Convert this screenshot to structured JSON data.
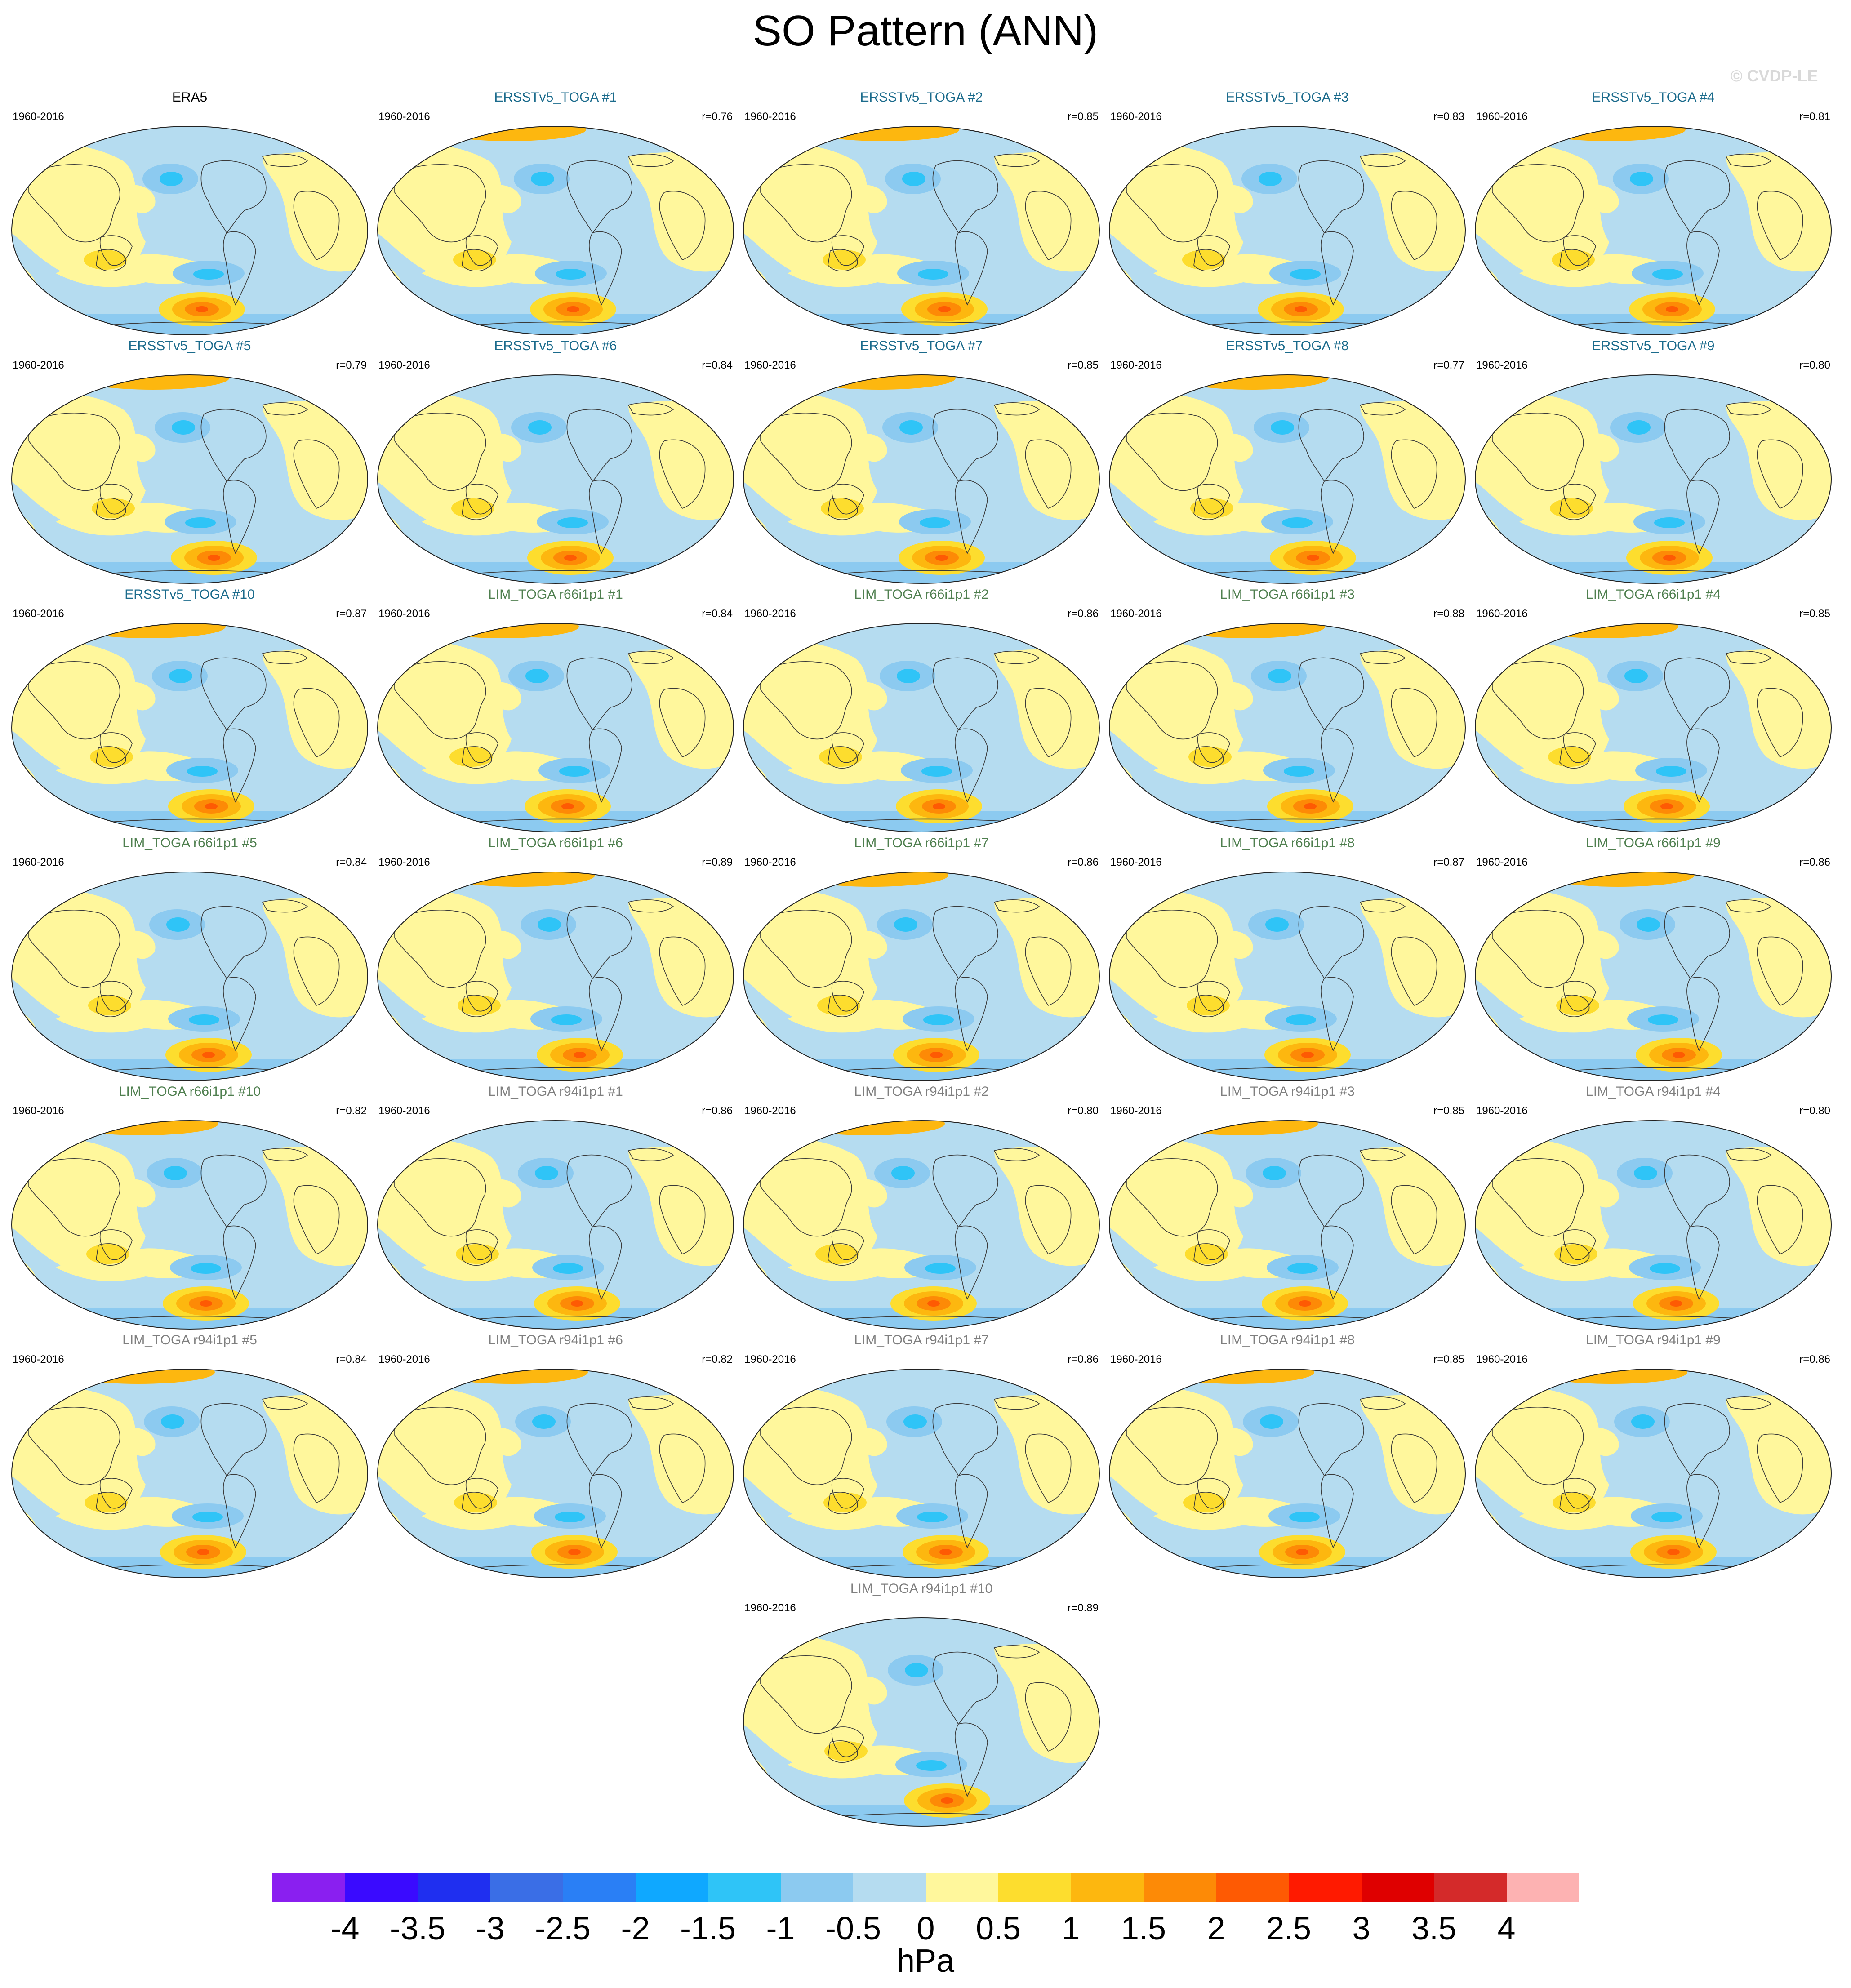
{
  "title": "SO Pattern (ANN)",
  "watermark": "© CVDP-LE",
  "colors": {
    "obs_title": "#000000",
    "ersst_title": "#1b6b8c",
    "lim66_title": "#4f7f4f",
    "lim94_title": "#7f7f7f",
    "ocean_neg": "#b5dcf0",
    "land_pos": "#fff79c",
    "contour": "#3a3a3a"
  },
  "panels": [
    {
      "title": "ERA5",
      "period": "1960-2016",
      "corr": "",
      "group": "obs"
    },
    {
      "title": "ERSSTv5_TOGA #1",
      "period": "1960-2016",
      "corr": "r=0.76",
      "group": "ersst"
    },
    {
      "title": "ERSSTv5_TOGA #2",
      "period": "1960-2016",
      "corr": "r=0.85",
      "group": "ersst"
    },
    {
      "title": "ERSSTv5_TOGA #3",
      "period": "1960-2016",
      "corr": "r=0.83",
      "group": "ersst"
    },
    {
      "title": "ERSSTv5_TOGA #4",
      "period": "1960-2016",
      "corr": "r=0.81",
      "group": "ersst"
    },
    {
      "title": "ERSSTv5_TOGA #5",
      "period": "1960-2016",
      "corr": "r=0.79",
      "group": "ersst"
    },
    {
      "title": "ERSSTv5_TOGA #6",
      "period": "1960-2016",
      "corr": "r=0.84",
      "group": "ersst"
    },
    {
      "title": "ERSSTv5_TOGA #7",
      "period": "1960-2016",
      "corr": "r=0.85",
      "group": "ersst"
    },
    {
      "title": "ERSSTv5_TOGA #8",
      "period": "1960-2016",
      "corr": "r=0.77",
      "group": "ersst"
    },
    {
      "title": "ERSSTv5_TOGA #9",
      "period": "1960-2016",
      "corr": "r=0.80",
      "group": "ersst"
    },
    {
      "title": "ERSSTv5_TOGA #10",
      "period": "1960-2016",
      "corr": "r=0.87",
      "group": "ersst"
    },
    {
      "title": "LIM_TOGA r66i1p1 #1",
      "period": "1960-2016",
      "corr": "r=0.84",
      "group": "lim66"
    },
    {
      "title": "LIM_TOGA r66i1p1 #2",
      "period": "1960-2016",
      "corr": "r=0.86",
      "group": "lim66"
    },
    {
      "title": "LIM_TOGA r66i1p1 #3",
      "period": "1960-2016",
      "corr": "r=0.88",
      "group": "lim66"
    },
    {
      "title": "LIM_TOGA r66i1p1 #4",
      "period": "1960-2016",
      "corr": "r=0.85",
      "group": "lim66"
    },
    {
      "title": "LIM_TOGA r66i1p1 #5",
      "period": "1960-2016",
      "corr": "r=0.84",
      "group": "lim66"
    },
    {
      "title": "LIM_TOGA r66i1p1 #6",
      "period": "1960-2016",
      "corr": "r=0.89",
      "group": "lim66"
    },
    {
      "title": "LIM_TOGA r66i1p1 #7",
      "period": "1960-2016",
      "corr": "r=0.86",
      "group": "lim66"
    },
    {
      "title": "LIM_TOGA r66i1p1 #8",
      "period": "1960-2016",
      "corr": "r=0.87",
      "group": "lim66"
    },
    {
      "title": "LIM_TOGA r66i1p1 #9",
      "period": "1960-2016",
      "corr": "r=0.86",
      "group": "lim66"
    },
    {
      "title": "LIM_TOGA r66i1p1 #10",
      "period": "1960-2016",
      "corr": "r=0.82",
      "group": "lim66"
    },
    {
      "title": "LIM_TOGA r94i1p1 #1",
      "period": "1960-2016",
      "corr": "r=0.86",
      "group": "lim94"
    },
    {
      "title": "LIM_TOGA r94i1p1 #2",
      "period": "1960-2016",
      "corr": "r=0.80",
      "group": "lim94"
    },
    {
      "title": "LIM_TOGA r94i1p1 #3",
      "period": "1960-2016",
      "corr": "r=0.85",
      "group": "lim94"
    },
    {
      "title": "LIM_TOGA r94i1p1 #4",
      "period": "1960-2016",
      "corr": "r=0.80",
      "group": "lim94"
    },
    {
      "title": "LIM_TOGA r94i1p1 #5",
      "period": "1960-2016",
      "corr": "r=0.84",
      "group": "lim94"
    },
    {
      "title": "LIM_TOGA r94i1p1 #6",
      "period": "1960-2016",
      "corr": "r=0.82",
      "group": "lim94"
    },
    {
      "title": "LIM_TOGA r94i1p1 #7",
      "period": "1960-2016",
      "corr": "r=0.86",
      "group": "lim94"
    },
    {
      "title": "LIM_TOGA r94i1p1 #8",
      "period": "1960-2016",
      "corr": "r=0.85",
      "group": "lim94"
    },
    {
      "title": "LIM_TOGA r94i1p1 #9",
      "period": "1960-2016",
      "corr": "r=0.86",
      "group": "lim94"
    },
    {
      "title": "LIM_TOGA r94i1p1 #10",
      "period": "1960-2016",
      "corr": "r=0.89",
      "group": "lim94"
    }
  ],
  "colorbar": {
    "unit": "hPa",
    "ticks": [
      "-4",
      "-3.5",
      "-3",
      "-2.5",
      "-2",
      "-1.5",
      "-1",
      "-0.5",
      "0",
      "0.5",
      "1",
      "1.5",
      "2",
      "2.5",
      "3",
      "3.5",
      "4"
    ],
    "colors": [
      "#8a1ff0",
      "#3a0aff",
      "#1f2ff0",
      "#3a6ee6",
      "#2a7ff5",
      "#0fa8ff",
      "#2fc4f7",
      "#8ccaf0",
      "#b5dcf0",
      "#fff79c",
      "#fddd2e",
      "#fdb70f",
      "#fd8a06",
      "#fe5a03",
      "#ff1a00",
      "#df0000",
      "#d42a2a",
      "#fdb2b2"
    ]
  }
}
